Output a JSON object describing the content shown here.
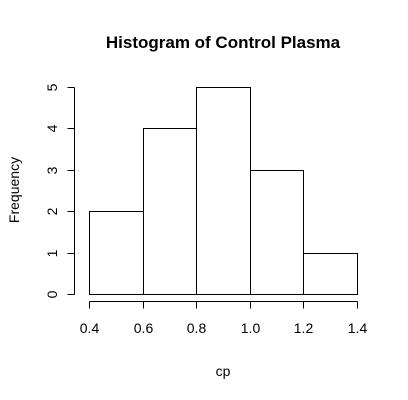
{
  "chart_data": {
    "type": "bar",
    "title": "Histogram of Control Plasma",
    "xlabel": "cp",
    "ylabel": "Frequency",
    "bins": [
      {
        "start": 0.4,
        "end": 0.6,
        "count": 2
      },
      {
        "start": 0.6,
        "end": 0.8,
        "count": 4
      },
      {
        "start": 0.8,
        "end": 1.0,
        "count": 5
      },
      {
        "start": 1.0,
        "end": 1.2,
        "count": 3
      },
      {
        "start": 1.2,
        "end": 1.4,
        "count": 1
      }
    ],
    "xlim": [
      0.4,
      1.4
    ],
    "ylim": [
      0,
      5
    ],
    "xticks": [
      "0.4",
      "0.6",
      "0.8",
      "1.0",
      "1.2",
      "1.4"
    ],
    "yticks": [
      "0",
      "1",
      "2",
      "3",
      "4",
      "5"
    ],
    "grid": false,
    "colors": {
      "bar_fill": "#ffffff",
      "bar_stroke": "#000000"
    }
  }
}
